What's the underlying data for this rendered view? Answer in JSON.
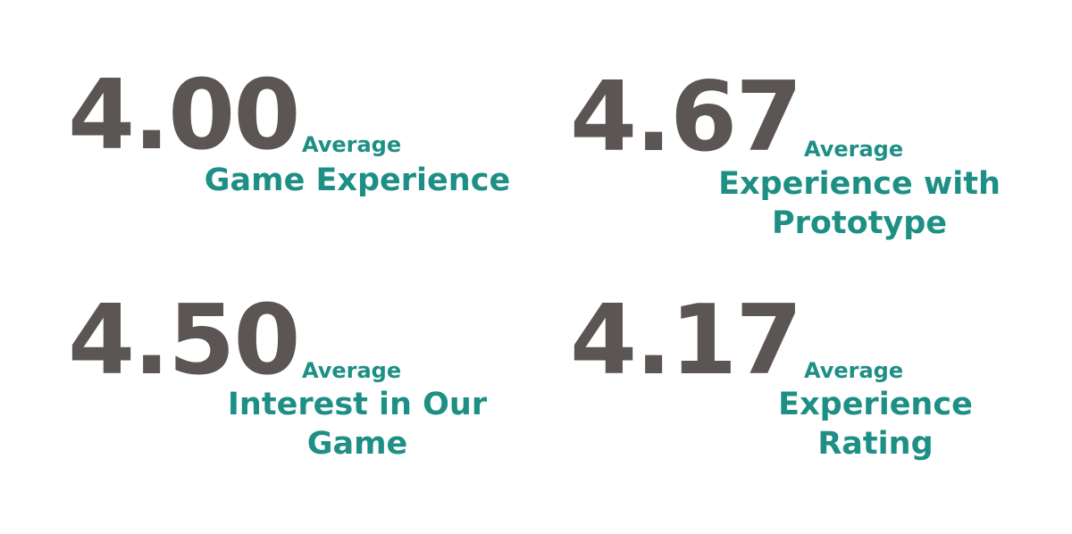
{
  "stats": [
    {
      "value": "4.00",
      "caption": "Average",
      "label_lines": [
        "Game Experience"
      ]
    },
    {
      "value": "4.67",
      "caption": "Average",
      "label_lines": [
        "Experience with",
        "Prototype"
      ]
    },
    {
      "value": "4.50",
      "caption": "Average",
      "label_lines": [
        "Interest in Our",
        "Game"
      ]
    },
    {
      "value": "4.17",
      "caption": "Average",
      "label_lines": [
        "Experience",
        "Rating"
      ]
    }
  ],
  "colors": {
    "number": "#5b5653",
    "accent": "#1e8f85",
    "background": "#ffffff"
  }
}
